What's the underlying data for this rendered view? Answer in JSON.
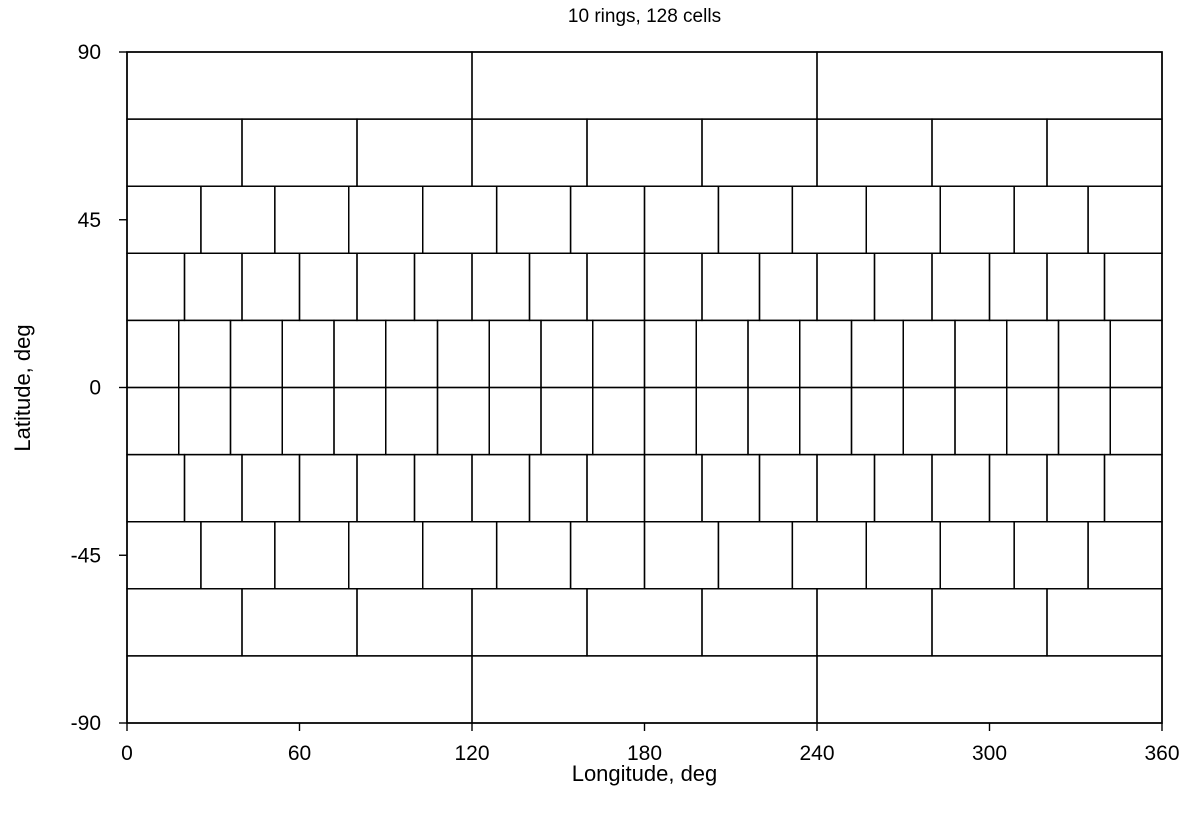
{
  "chart_data": {
    "type": "grid",
    "title": "10 rings, 128 cells",
    "xlabel": "Longitude, deg",
    "ylabel": "Latitude, deg",
    "xlim": [
      0,
      360
    ],
    "ylim": [
      -90,
      90
    ],
    "xticks": [
      0,
      60,
      120,
      180,
      240,
      300,
      360
    ],
    "yticks": [
      -90,
      -45,
      0,
      45,
      90
    ],
    "xtick_labels": [
      "0",
      "60",
      "120",
      "180",
      "240",
      "300",
      "360"
    ],
    "ytick_labels": [
      "-90",
      "-45",
      "0",
      "45",
      "90"
    ],
    "grid": false,
    "rings": [
      {
        "lat_min": 72,
        "lat_max": 90,
        "cells": 3
      },
      {
        "lat_min": 54,
        "lat_max": 72,
        "cells": 9
      },
      {
        "lat_min": 36,
        "lat_max": 54,
        "cells": 14
      },
      {
        "lat_min": 18,
        "lat_max": 36,
        "cells": 18
      },
      {
        "lat_min": 0,
        "lat_max": 18,
        "cells": 20
      },
      {
        "lat_min": -18,
        "lat_max": 0,
        "cells": 20
      },
      {
        "lat_min": -36,
        "lat_max": -18,
        "cells": 18
      },
      {
        "lat_min": -54,
        "lat_max": -36,
        "cells": 14
      },
      {
        "lat_min": -72,
        "lat_max": -54,
        "cells": 9
      },
      {
        "lat_min": -90,
        "lat_max": -72,
        "cells": 3
      }
    ]
  }
}
